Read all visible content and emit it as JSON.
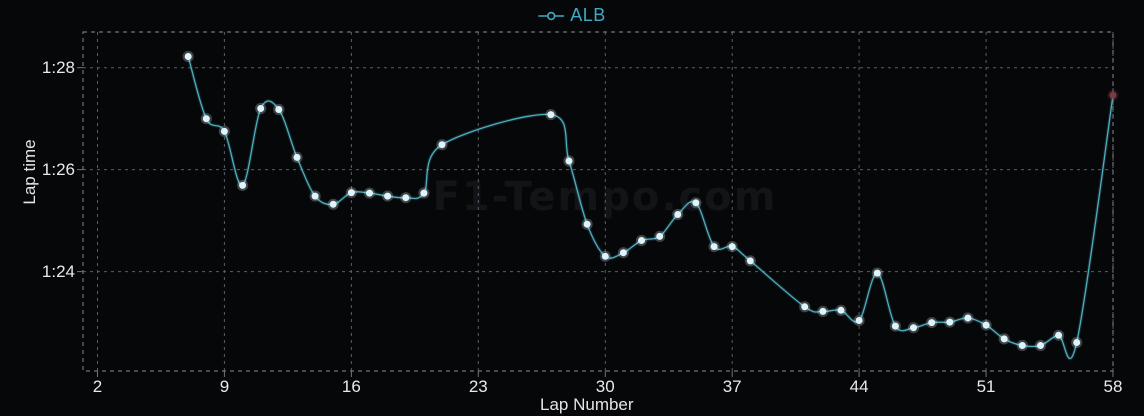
{
  "chart_data": {
    "type": "line",
    "title": "",
    "xlabel": "Lap Number",
    "ylabel": "Lap time",
    "watermark": "F1-Tempo.com",
    "legend": {
      "label": "ALB",
      "position": "top-center",
      "color": "#41a9c4"
    },
    "grid": "dashed",
    "x_axis": {
      "ticks": [
        2,
        9,
        16,
        23,
        30,
        37,
        44,
        51,
        58
      ],
      "min": 1.2,
      "max": 58
    },
    "y_axis": {
      "ticks": [
        {
          "label": "1:28",
          "seconds": 88
        },
        {
          "label": "1:26",
          "seconds": 86
        },
        {
          "label": "1:24",
          "seconds": 84
        }
      ],
      "min_seconds": 82.05,
      "max_seconds": 88.7
    },
    "colors": {
      "line": "#4fadbf",
      "marker": "#dff4fa",
      "final_lap_marker": "#7c3a45",
      "grid": "#595d66",
      "border": "#6f737d",
      "tick_text": "#e8e9eb",
      "watermark": "rgba(225,235,250,0.06)",
      "background": "#060709"
    },
    "series": [
      {
        "name": "ALB",
        "points": [
          {
            "lap": 7,
            "time": "1:28.22",
            "seconds": 88.22
          },
          {
            "lap": 8,
            "time": "1:27.00",
            "seconds": 87.0
          },
          {
            "lap": 9,
            "time": "1:26.75",
            "seconds": 86.75
          },
          {
            "lap": 10,
            "time": "1:25.69",
            "seconds": 85.69
          },
          {
            "lap": 11,
            "time": "1:27.20",
            "seconds": 87.2
          },
          {
            "lap": 12,
            "time": "1:27.18",
            "seconds": 87.18
          },
          {
            "lap": 13,
            "time": "1:26.24",
            "seconds": 86.24
          },
          {
            "lap": 14,
            "time": "1:25.48",
            "seconds": 85.48
          },
          {
            "lap": 15,
            "time": "1:25.32",
            "seconds": 85.32
          },
          {
            "lap": 16,
            "time": "1:25.55",
            "seconds": 85.55
          },
          {
            "lap": 17,
            "time": "1:25.54",
            "seconds": 85.54
          },
          {
            "lap": 18,
            "time": "1:25.48",
            "seconds": 85.48
          },
          {
            "lap": 19,
            "time": "1:25.45",
            "seconds": 85.45
          },
          {
            "lap": 20,
            "time": "1:25.54",
            "seconds": 85.54
          },
          {
            "lap": 21,
            "time": "1:26.49",
            "seconds": 86.49
          },
          {
            "lap": 27,
            "time": "1:27.08",
            "seconds": 87.08
          },
          {
            "lap": 28,
            "time": "1:26.17",
            "seconds": 86.17
          },
          {
            "lap": 29,
            "time": "1:24.93",
            "seconds": 84.93
          },
          {
            "lap": 30,
            "time": "1:24.30",
            "seconds": 84.3
          },
          {
            "lap": 31,
            "time": "1:24.37",
            "seconds": 84.37
          },
          {
            "lap": 32,
            "time": "1:24.61",
            "seconds": 84.61
          },
          {
            "lap": 33,
            "time": "1:24.69",
            "seconds": 84.69
          },
          {
            "lap": 34,
            "time": "1:25.12",
            "seconds": 85.12
          },
          {
            "lap": 35,
            "time": "1:25.35",
            "seconds": 85.35
          },
          {
            "lap": 36,
            "time": "1:24.49",
            "seconds": 84.49
          },
          {
            "lap": 37,
            "time": "1:24.49",
            "seconds": 84.49
          },
          {
            "lap": 38,
            "time": "1:24.21",
            "seconds": 84.21
          },
          {
            "lap": 41,
            "time": "1:23.31",
            "seconds": 83.31
          },
          {
            "lap": 42,
            "time": "1:23.22",
            "seconds": 83.22
          },
          {
            "lap": 43,
            "time": "1:23.24",
            "seconds": 83.24
          },
          {
            "lap": 44,
            "time": "1:23.04",
            "seconds": 83.04
          },
          {
            "lap": 45,
            "time": "1:23.97",
            "seconds": 83.97
          },
          {
            "lap": 46,
            "time": "1:22.93",
            "seconds": 82.93
          },
          {
            "lap": 47,
            "time": "1:22.90",
            "seconds": 82.9
          },
          {
            "lap": 48,
            "time": "1:23.00",
            "seconds": 83.0
          },
          {
            "lap": 49,
            "time": "1:23.01",
            "seconds": 83.01
          },
          {
            "lap": 50,
            "time": "1:23.09",
            "seconds": 83.09
          },
          {
            "lap": 51,
            "time": "1:22.95",
            "seconds": 82.95
          },
          {
            "lap": 52,
            "time": "1:22.68",
            "seconds": 82.68
          },
          {
            "lap": 53,
            "time": "1:22.55",
            "seconds": 82.55
          },
          {
            "lap": 54,
            "time": "1:22.55",
            "seconds": 82.55
          },
          {
            "lap": 55,
            "time": "1:22.75",
            "seconds": 82.75
          },
          {
            "lap": 56,
            "time": "1:22.61",
            "seconds": 82.61
          },
          {
            "lap": 58,
            "time": "1:27.46",
            "seconds": 87.46,
            "point_color": "#7c3a45"
          }
        ]
      }
    ]
  }
}
